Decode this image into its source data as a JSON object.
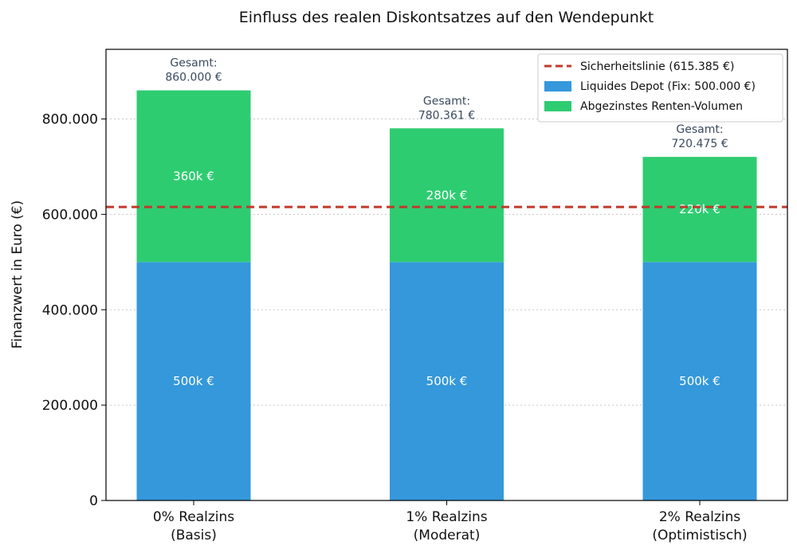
{
  "chart_data": {
    "type": "bar",
    "stacked": true,
    "title": "Einfluss des realen Diskontsatzes auf den Wendepunkt",
    "xlabel": "",
    "ylabel": "Finanzwert in Euro (€)",
    "ylim": [
      0,
      946000
    ],
    "yticks": [
      0,
      200000,
      400000,
      600000,
      800000
    ],
    "ytick_labels": [
      "0",
      "200.000",
      "400.000",
      "600.000",
      "800.000"
    ],
    "grid": "y-dotted",
    "legend_position": "top-right",
    "categories": [
      {
        "line1": "0% Realzins",
        "line2": "(Basis)"
      },
      {
        "line1": "1% Realzins",
        "line2": "(Moderat)"
      },
      {
        "line1": "2% Realzins",
        "line2": "(Optimistisch)"
      }
    ],
    "series": [
      {
        "name": "Liquides Depot (Fix: 500.000 €)",
        "color": "#3498db",
        "values": [
          500000,
          500000,
          500000
        ],
        "labels": [
          "500k €",
          "500k €",
          "500k €"
        ]
      },
      {
        "name": "Abgezinstes Renten-Volumen",
        "color": "#2ecc71",
        "values": [
          360000,
          280361,
          220475
        ],
        "labels": [
          "360k €",
          "280k €",
          "220k €"
        ]
      }
    ],
    "totals": [
      {
        "prefix": "Gesamt:",
        "value": "860.000 €"
      },
      {
        "prefix": "Gesamt:",
        "value": "780.361 €"
      },
      {
        "prefix": "Gesamt:",
        "value": "720.475 €"
      }
    ],
    "reference_line": {
      "name": "Sicherheitslinie (615.385 €)",
      "value": 615385,
      "color": "#c0392b",
      "style": "dashed"
    }
  }
}
